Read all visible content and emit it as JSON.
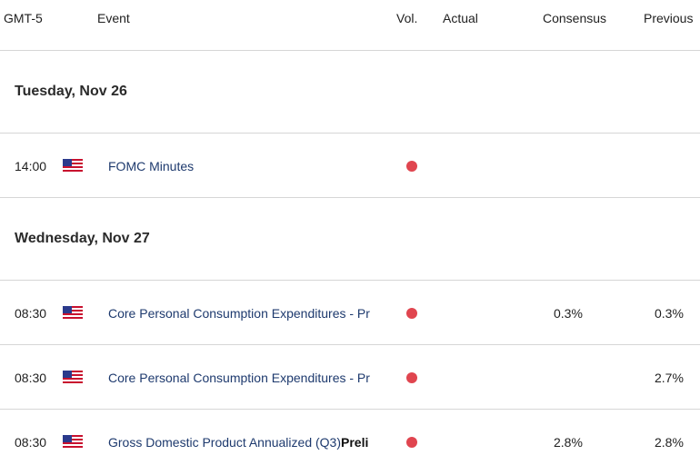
{
  "header": {
    "timezone": "GMT-5",
    "event": "Event",
    "vol": "Vol.",
    "actual": "Actual",
    "consensus": "Consensus",
    "previous": "Previous"
  },
  "days": [
    {
      "label": "Tuesday, Nov 26"
    },
    {
      "label": "Wednesday, Nov 27"
    }
  ],
  "events": [
    {
      "time": "14:00",
      "country_flag": "us-flag-icon",
      "name": "FOMC Minutes",
      "suffix": "",
      "volatility": "high",
      "consensus": "",
      "previous": ""
    },
    {
      "time": "08:30",
      "country_flag": "us-flag-icon",
      "name": "Core Personal Consumption Expenditures - Pr",
      "suffix": "",
      "volatility": "high",
      "consensus": "0.3%",
      "previous": "0.3%"
    },
    {
      "time": "08:30",
      "country_flag": "us-flag-icon",
      "name": "Core Personal Consumption Expenditures - Pr",
      "suffix": "",
      "volatility": "high",
      "consensus": "",
      "previous": "2.7%"
    },
    {
      "time": "08:30",
      "country_flag": "us-flag-icon",
      "name": "Gross Domestic Product Annualized (Q3)",
      "suffix": "Preli",
      "volatility": "high",
      "consensus": "2.8%",
      "previous": "2.8%"
    }
  ],
  "colors": {
    "high_volatility": "#e0454f",
    "event_link": "#1e3a6e"
  }
}
